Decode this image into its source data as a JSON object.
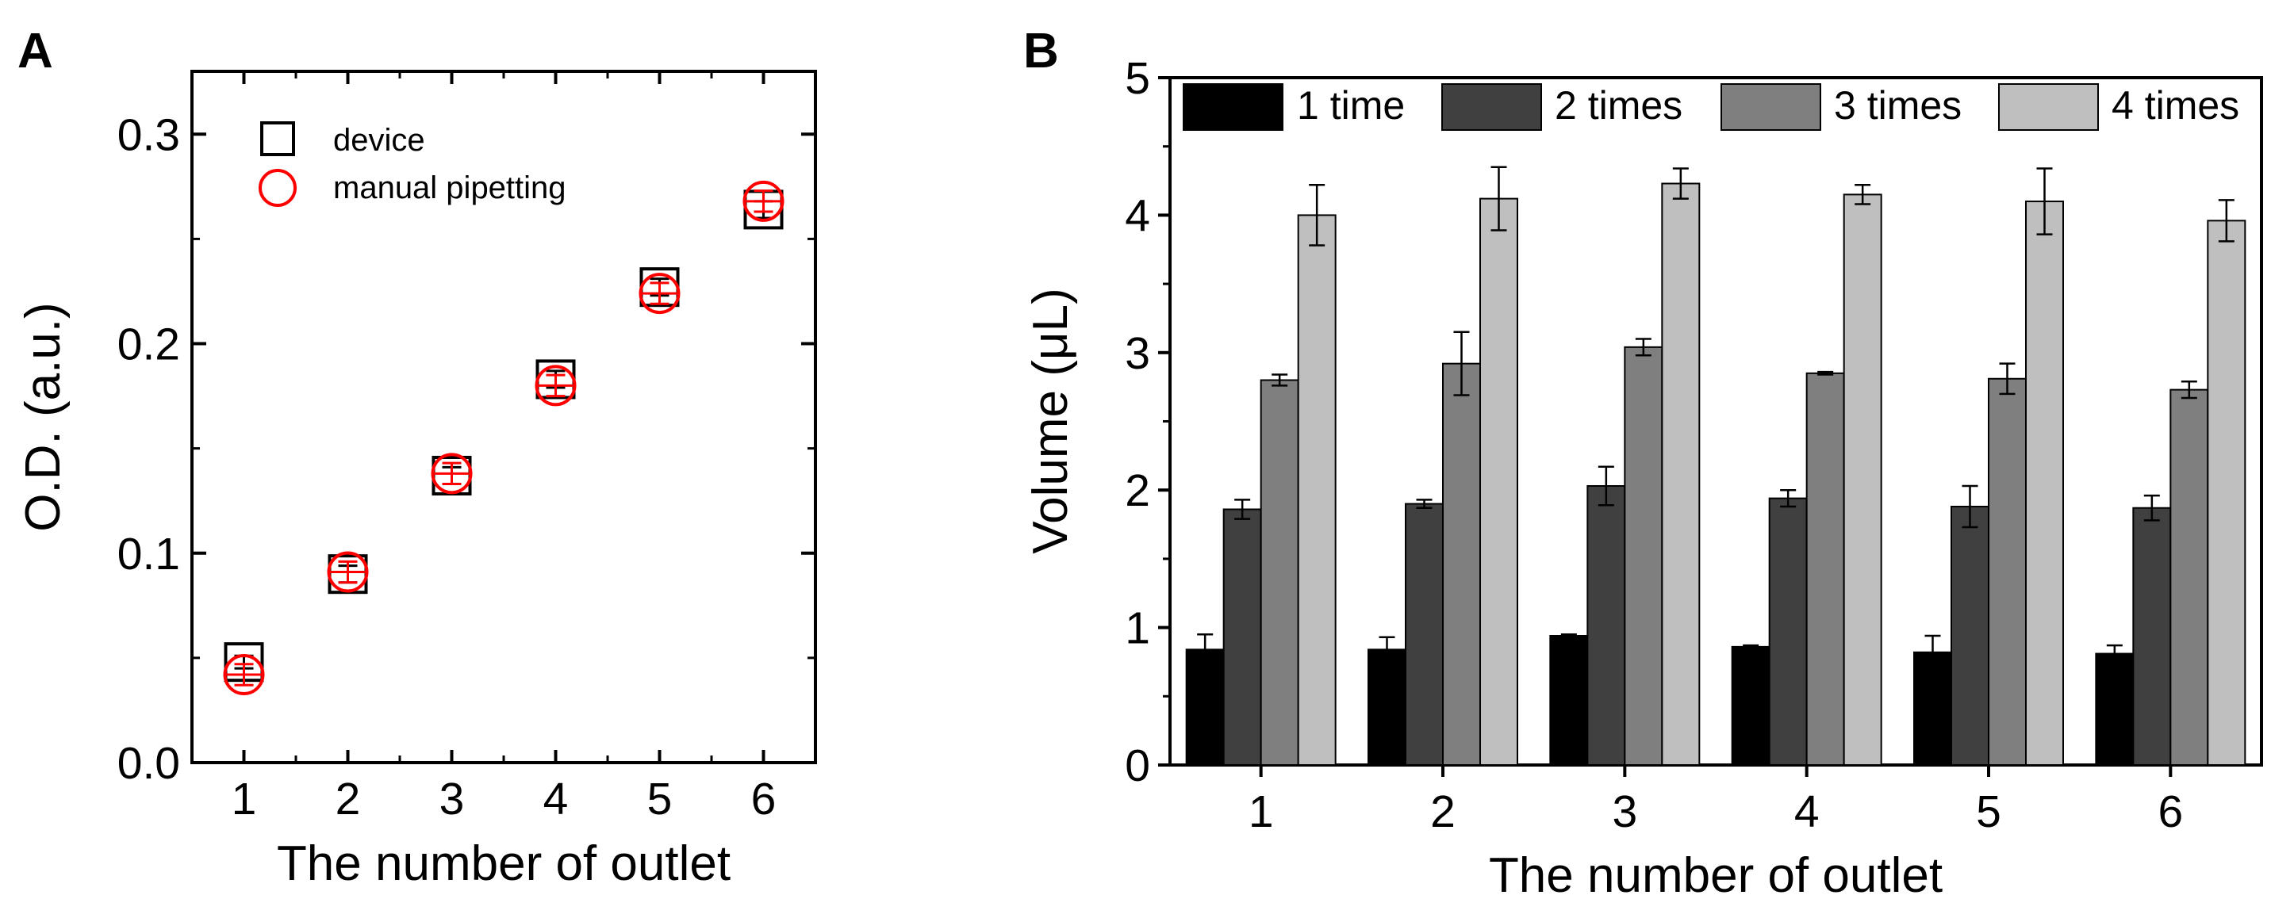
{
  "chart_data": [
    {
      "panel_label": "A",
      "type": "scatter",
      "xlabel": "The number of outlet",
      "ylabel": "O.D. (a.u.)",
      "xlim": [
        0.5,
        6.5
      ],
      "ylim": [
        0,
        0.33
      ],
      "x_ticks": [
        "1",
        "2",
        "3",
        "4",
        "5",
        "6"
      ],
      "y_ticks": [
        "0.0",
        "0.1",
        "0.2",
        "0.3"
      ],
      "y_tick_values": [
        0.0,
        0.1,
        0.2,
        0.3
      ],
      "legend_position": "top-left",
      "x": [
        1,
        2,
        3,
        4,
        5,
        6
      ],
      "series": [
        {
          "name": "device",
          "marker": "square",
          "color": "#000000",
          "values": [
            0.048,
            0.09,
            0.137,
            0.183,
            0.227,
            0.264
          ],
          "errors": [
            0.003,
            0.004,
            0.004,
            0.004,
            0.004,
            0.004
          ]
        },
        {
          "name": "manual pipetting",
          "marker": "circle",
          "color": "#ff0000",
          "values": [
            0.042,
            0.091,
            0.138,
            0.18,
            0.224,
            0.268
          ],
          "errors": [
            0.005,
            0.005,
            0.005,
            0.005,
            0.005,
            0.005
          ]
        }
      ]
    },
    {
      "panel_label": "B",
      "type": "bar",
      "xlabel": "The number of outlet",
      "ylabel": "Volume (μL)",
      "categories": [
        "1",
        "2",
        "3",
        "4",
        "5",
        "6"
      ],
      "ylim": [
        0,
        5
      ],
      "y_ticks": [
        "0",
        "1",
        "2",
        "3",
        "4",
        "5"
      ],
      "y_tick_values": [
        0,
        1,
        2,
        3,
        4,
        5
      ],
      "legend_position": "top",
      "series": [
        {
          "name": "1 time",
          "color": "#000000",
          "values": [
            0.84,
            0.84,
            0.94,
            0.86,
            0.82,
            0.81
          ],
          "errors": [
            0.11,
            0.09,
            0.01,
            0.01,
            0.12,
            0.06
          ]
        },
        {
          "name": "2 times",
          "color": "#404040",
          "values": [
            1.86,
            1.9,
            2.03,
            1.94,
            1.88,
            1.87
          ],
          "errors": [
            0.07,
            0.03,
            0.14,
            0.06,
            0.15,
            0.09
          ]
        },
        {
          "name": "3 times",
          "color": "#7f7f7f",
          "values": [
            2.8,
            2.92,
            3.04,
            2.85,
            2.81,
            2.73
          ],
          "errors": [
            0.04,
            0.23,
            0.06,
            0.01,
            0.11,
            0.06
          ]
        },
        {
          "name": "4 times",
          "color": "#bfbfbf",
          "values": [
            4.0,
            4.12,
            4.23,
            4.15,
            4.1,
            3.96
          ],
          "errors": [
            0.22,
            0.23,
            0.11,
            0.07,
            0.24,
            0.15
          ]
        }
      ]
    }
  ]
}
